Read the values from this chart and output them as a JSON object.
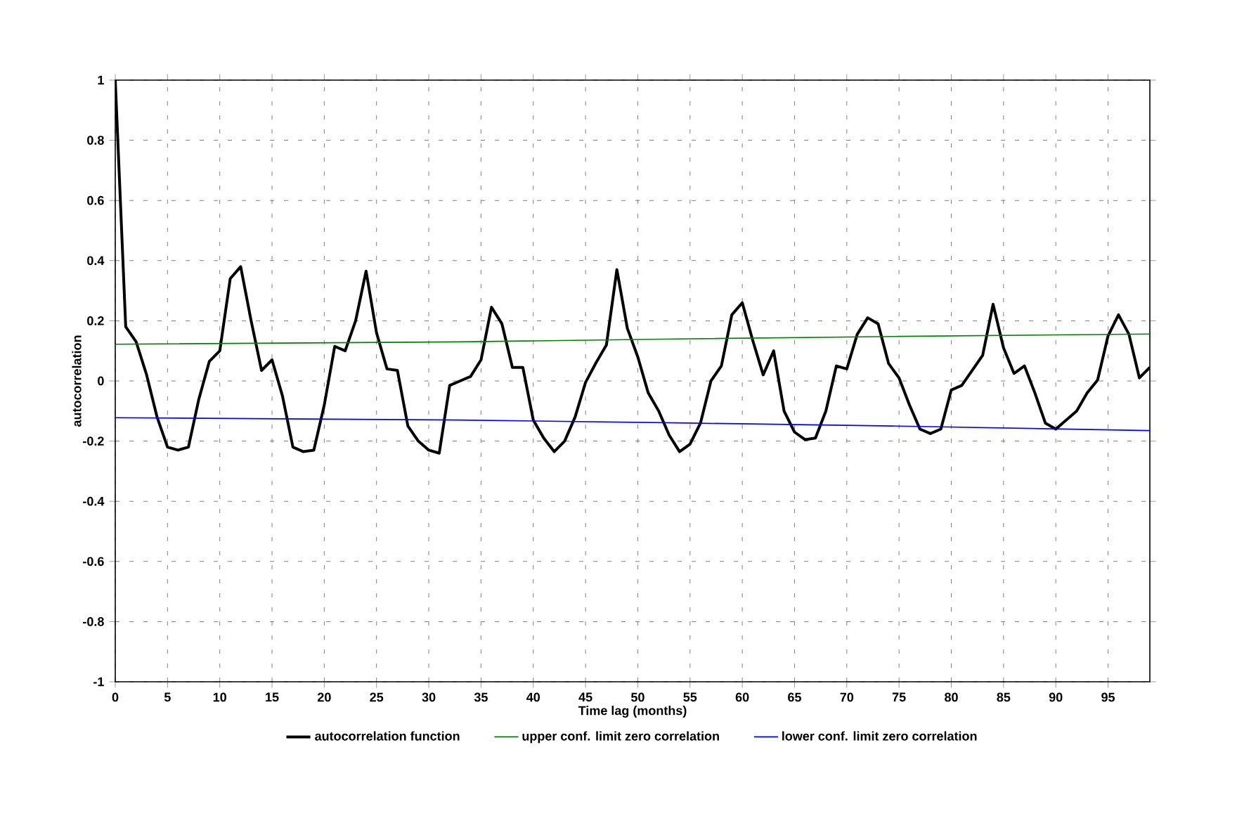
{
  "chart_data": {
    "type": "line",
    "xlabel": "Time lag (months)",
    "ylabel": "autocorrelation",
    "x": [
      0,
      1,
      2,
      3,
      4,
      5,
      6,
      7,
      8,
      9,
      10,
      11,
      12,
      13,
      14,
      15,
      16,
      17,
      18,
      19,
      20,
      21,
      22,
      23,
      24,
      25,
      26,
      27,
      28,
      29,
      30,
      31,
      32,
      33,
      34,
      35,
      36,
      37,
      38,
      39,
      40,
      41,
      42,
      43,
      44,
      45,
      46,
      47,
      48,
      49,
      50,
      51,
      52,
      53,
      54,
      55,
      56,
      57,
      58,
      59,
      60,
      61,
      62,
      63,
      64,
      65,
      66,
      67,
      68,
      69,
      70,
      71,
      72,
      73,
      74,
      75,
      76,
      77,
      78,
      79,
      80,
      81,
      82,
      83,
      84,
      85,
      86,
      87,
      88,
      89,
      90,
      91,
      92,
      93,
      94,
      95,
      96,
      97,
      98,
      99
    ],
    "series": [
      {
        "name": "autocorrelation function",
        "color": "#000000",
        "values": [
          1,
          0.18,
          0.13,
          0.02,
          -0.12,
          -0.22,
          -0.23,
          -0.22,
          -0.06,
          0.065,
          0.1,
          0.34,
          0.38,
          0.2,
          0.035,
          0.07,
          -0.05,
          -0.22,
          -0.235,
          -0.23,
          -0.08,
          0.115,
          0.1,
          0.2,
          0.365,
          0.16,
          0.04,
          0.035,
          -0.15,
          -0.2,
          -0.23,
          -0.24,
          -0.015,
          0,
          0.015,
          0.07,
          0.245,
          0.19,
          0.045,
          0.045,
          -0.13,
          -0.19,
          -0.235,
          -0.2,
          -0.12,
          -0.005,
          0.06,
          0.12,
          0.37,
          0.175,
          0.08,
          -0.04,
          -0.1,
          -0.18,
          -0.235,
          -0.21,
          -0.14,
          0,
          0.05,
          0.22,
          0.26,
          0.135,
          0.02,
          0.1,
          -0.1,
          -0.17,
          -0.195,
          -0.19,
          -0.1,
          0.05,
          0.04,
          0.155,
          0.21,
          0.19,
          0.058,
          0.01,
          -0.08,
          -0.16,
          -0.175,
          -0.16,
          -0.03,
          -0.015,
          0.035,
          0.085,
          0.255,
          0.11,
          0.025,
          0.05,
          -0.04,
          -0.14,
          -0.16,
          -0.13,
          -0.1,
          -0.04,
          0.003,
          0.15,
          0.22,
          0.155,
          0.01,
          0.045
        ]
      },
      {
        "name": "upper conf. limit zero correlation",
        "color": "#008000",
        "x": [
          0,
          33,
          55,
          75,
          99
        ],
        "values": [
          0.122,
          0.13,
          0.14,
          0.148,
          0.156
        ]
      },
      {
        "name": "lower conf. limit zero correlation",
        "color": "#0000ff",
        "x": [
          0,
          33,
          55,
          75,
          99
        ],
        "values": [
          -0.122,
          -0.13,
          -0.14,
          -0.15,
          -0.165
        ]
      }
    ],
    "xlim": [
      0,
      99
    ],
    "xticks": [
      0,
      5,
      10,
      15,
      20,
      25,
      30,
      35,
      40,
      45,
      50,
      55,
      60,
      65,
      70,
      75,
      80,
      85,
      90,
      95
    ],
    "ylim": [
      -1,
      1
    ],
    "yticks": [
      -1,
      -0.8,
      -0.6,
      -0.4,
      -0.2,
      0,
      0.2,
      0.4,
      0.6,
      0.8,
      1
    ],
    "grid": true,
    "legend": "bottom",
    "marker": "none",
    "line_style": "solid"
  }
}
